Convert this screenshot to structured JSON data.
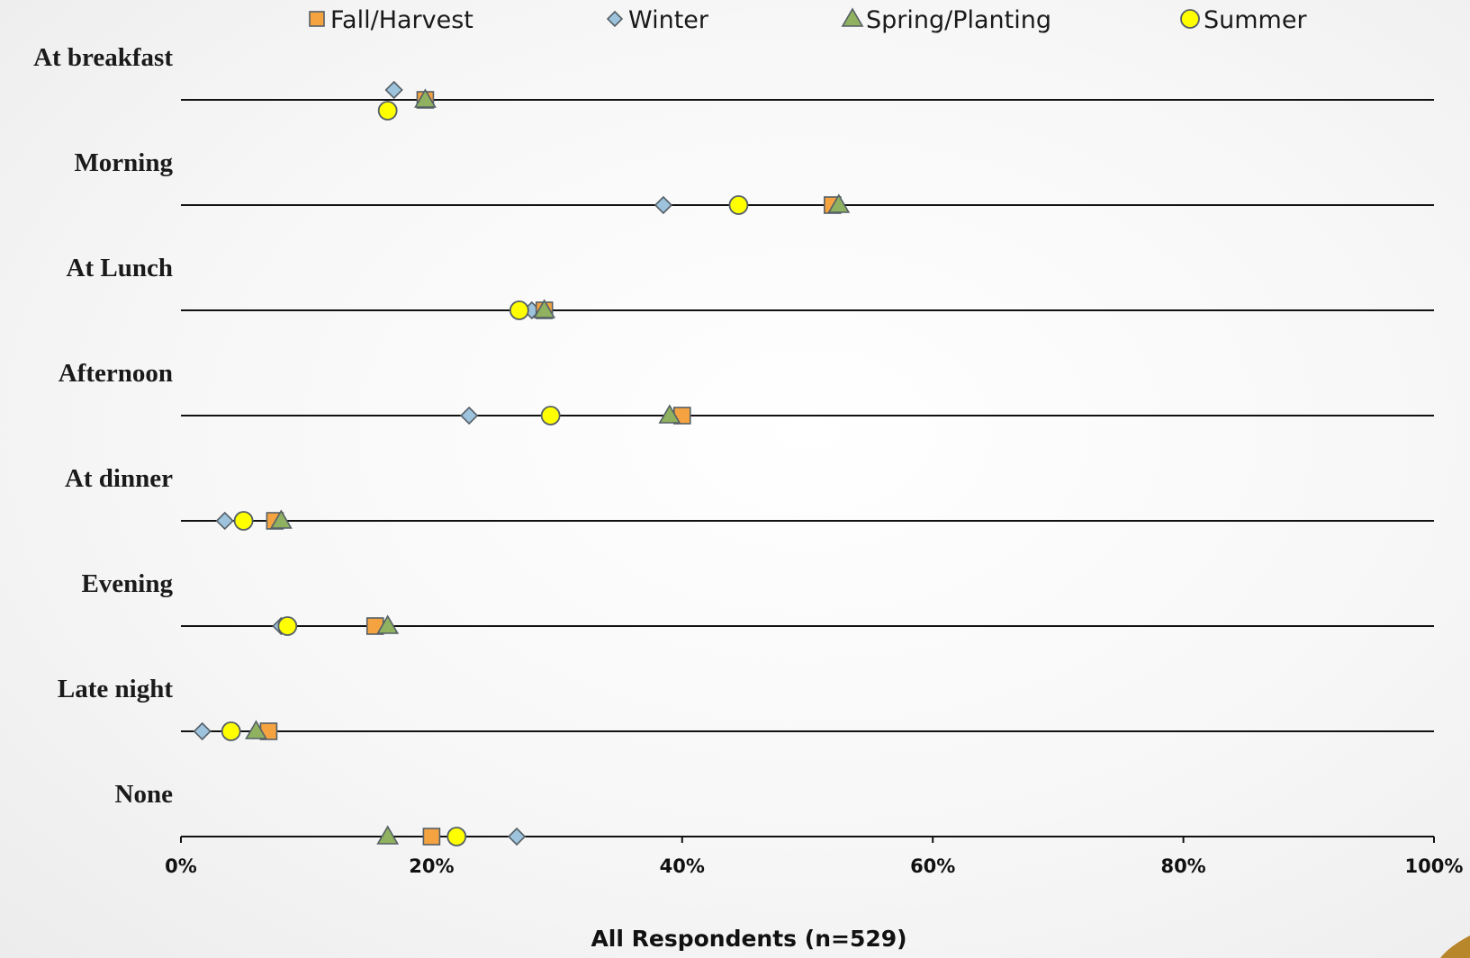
{
  "chart_data": {
    "type": "scatter",
    "orientation": "horizontal-dot-plot",
    "categories": [
      "At breakfast",
      "Morning",
      "At Lunch",
      "Afternoon",
      "At dinner",
      "Evening",
      "Late night",
      "None"
    ],
    "series": [
      {
        "name": "Fall/Harvest",
        "marker": "square",
        "color": "#f4a340",
        "values": [
          19.5,
          52,
          29,
          40,
          7.5,
          15.5,
          7,
          20
        ]
      },
      {
        "name": "Winter",
        "marker": "diamond",
        "color": "#9dc3dd",
        "values": [
          17,
          38.5,
          28,
          23,
          3.5,
          8,
          1.7,
          26.8
        ]
      },
      {
        "name": "Spring/Planting",
        "marker": "triangle",
        "color": "#8fb160",
        "values": [
          19.5,
          52.5,
          29,
          39,
          8,
          16.5,
          6,
          16.5
        ]
      },
      {
        "name": "Summer",
        "marker": "circle",
        "color": "#ffff00",
        "values": [
          16.5,
          44.5,
          27,
          29.5,
          5,
          8.5,
          4,
          22
        ]
      }
    ],
    "xlim": [
      0,
      100
    ],
    "x_ticks": [
      "0%",
      "20%",
      "40%",
      "60%",
      "80%",
      "100%"
    ],
    "x_tick_values": [
      0,
      20,
      40,
      60,
      80,
      100
    ],
    "xlabel": "All Respondents (n=529)",
    "legend_position": "top",
    "grid": false
  }
}
